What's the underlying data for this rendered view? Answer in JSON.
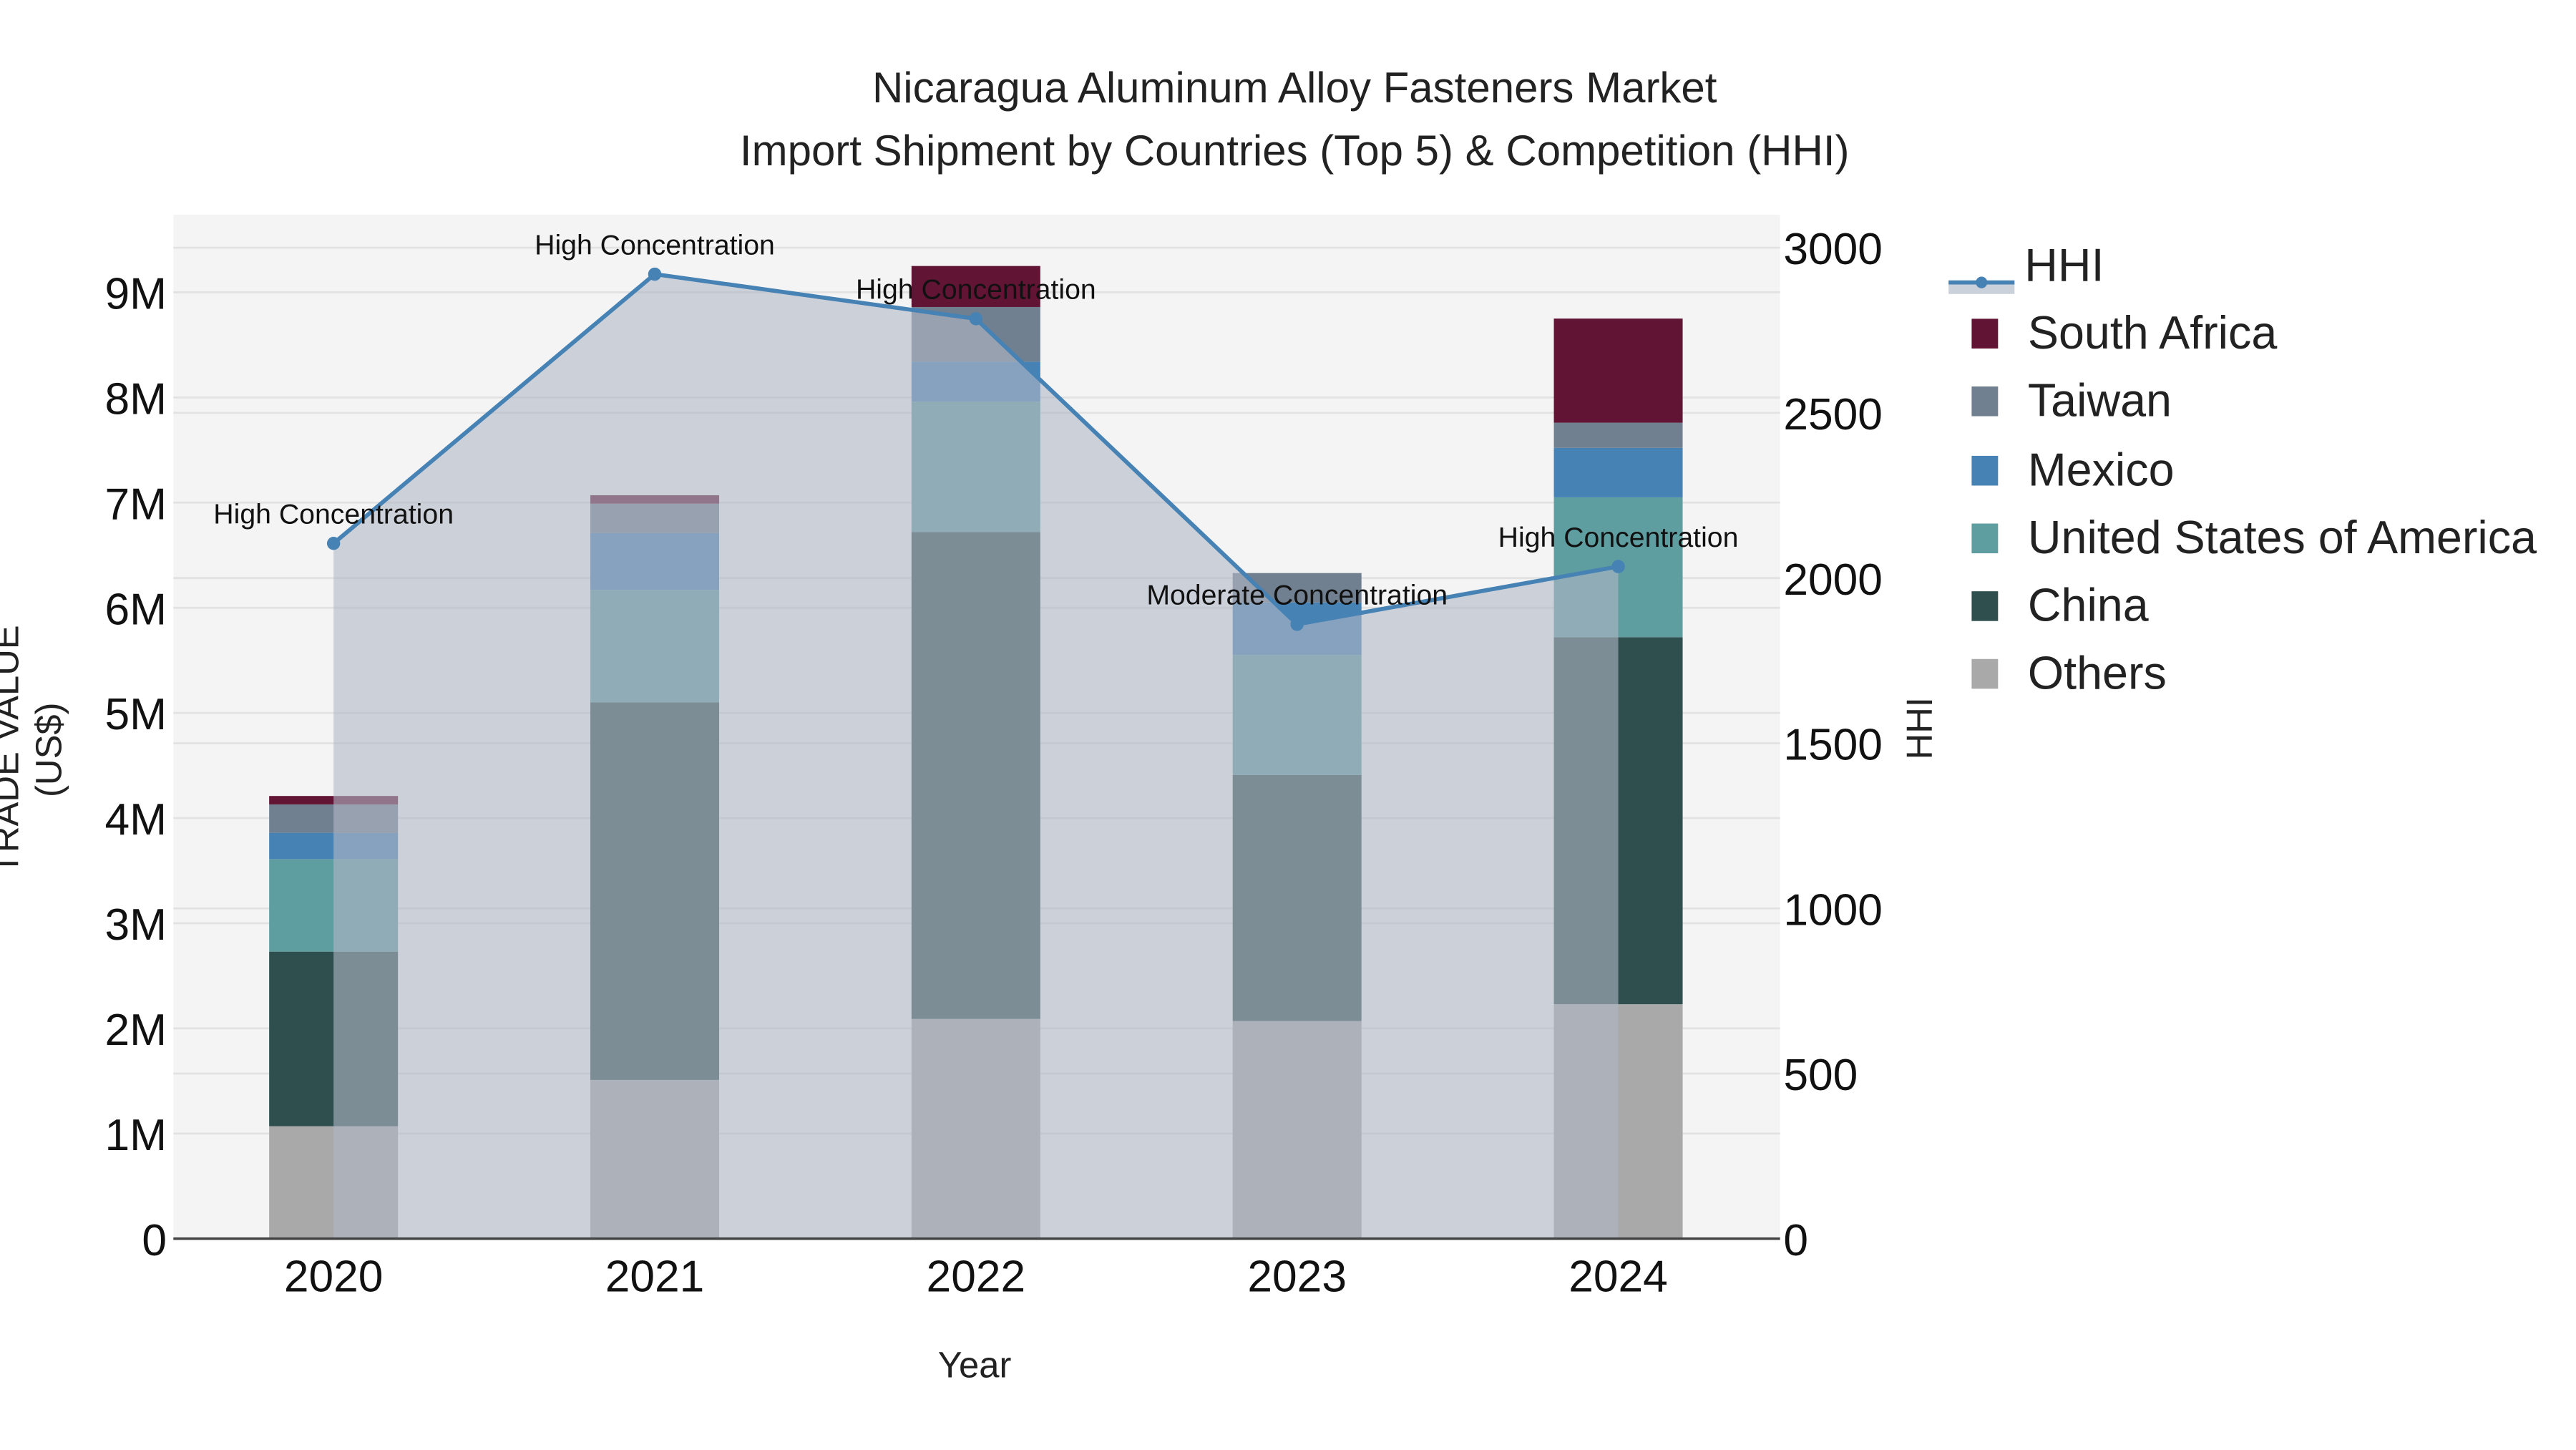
{
  "title": {
    "line1": "Nicaragua Aluminum Alloy Fasteners Market",
    "line2": "Import Shipment by Countries (Top 5) & Competition (HHI)"
  },
  "axes": {
    "x_title": "Year",
    "y_left_title": "TRADE VALUE (US$)",
    "y_right_title": "HHI",
    "y_left_ticks": [
      "0",
      "1M",
      "2M",
      "3M",
      "4M",
      "5M",
      "6M",
      "7M",
      "8M",
      "9M"
    ],
    "y_right_ticks": [
      "0",
      "500",
      "1000",
      "1500",
      "2000",
      "2500",
      "3000"
    ]
  },
  "legend": [
    {
      "label": "HHI",
      "type": "line",
      "color": "#4682b4"
    },
    {
      "label": "South Africa",
      "type": "bar",
      "color": "#611434"
    },
    {
      "label": "Taiwan",
      "type": "bar",
      "color": "#708090"
    },
    {
      "label": "Mexico",
      "type": "bar",
      "color": "#4682b4"
    },
    {
      "label": "United States of America",
      "type": "bar",
      "color": "#5f9ea0"
    },
    {
      "label": "China",
      "type": "bar",
      "color": "#2f4f4f"
    },
    {
      "label": "Others",
      "type": "bar",
      "color": "#a9a9a9"
    }
  ],
  "chart_data": {
    "type": "bar",
    "subtype": "stacked bar with line overlay (secondary axis, filled area)",
    "title": "Nicaragua Aluminum Alloy Fasteners Market - Import Shipment by Countries (Top 5) & Competition (HHI)",
    "xlabel": "Year",
    "ylabel": "TRADE VALUE (US$)",
    "y2label": "HHI",
    "categories": [
      "2020",
      "2021",
      "2022",
      "2023",
      "2024"
    ],
    "ylim": [
      0,
      9750000
    ],
    "y2lim": [
      0,
      3100
    ],
    "grid": true,
    "legend_position": "right",
    "series": [
      {
        "name": "Others",
        "color": "#a9a9a9",
        "values": [
          1070000,
          1510000,
          2090000,
          2070000,
          2230000
        ]
      },
      {
        "name": "China",
        "color": "#2f4f4f",
        "values": [
          1660000,
          3590000,
          4630000,
          2340000,
          3490000
        ]
      },
      {
        "name": "United States of America",
        "color": "#5f9ea0",
        "values": [
          880000,
          1070000,
          1240000,
          1140000,
          1330000
        ]
      },
      {
        "name": "Mexico",
        "color": "#4682b4",
        "values": [
          250000,
          540000,
          380000,
          500000,
          470000
        ]
      },
      {
        "name": "Taiwan",
        "color": "#708090",
        "values": [
          270000,
          280000,
          520000,
          280000,
          240000
        ]
      },
      {
        "name": "South Africa",
        "color": "#611434",
        "values": [
          80000,
          80000,
          390000,
          0,
          990000
        ]
      }
    ],
    "line_series": {
      "name": "HHI",
      "axis": "right",
      "color": "#4682b4",
      "fill": "rgba(176,184,198,0.6)",
      "values": [
        2105,
        2920,
        2785,
        1860,
        2035
      ]
    },
    "annotations": [
      {
        "x": "2020",
        "text": "High Concentration"
      },
      {
        "x": "2021",
        "text": "High Concentration"
      },
      {
        "x": "2022",
        "text": "High Concentration"
      },
      {
        "x": "2023",
        "text": "Moderate Concentration"
      },
      {
        "x": "2024",
        "text": "High Concentration"
      }
    ]
  }
}
